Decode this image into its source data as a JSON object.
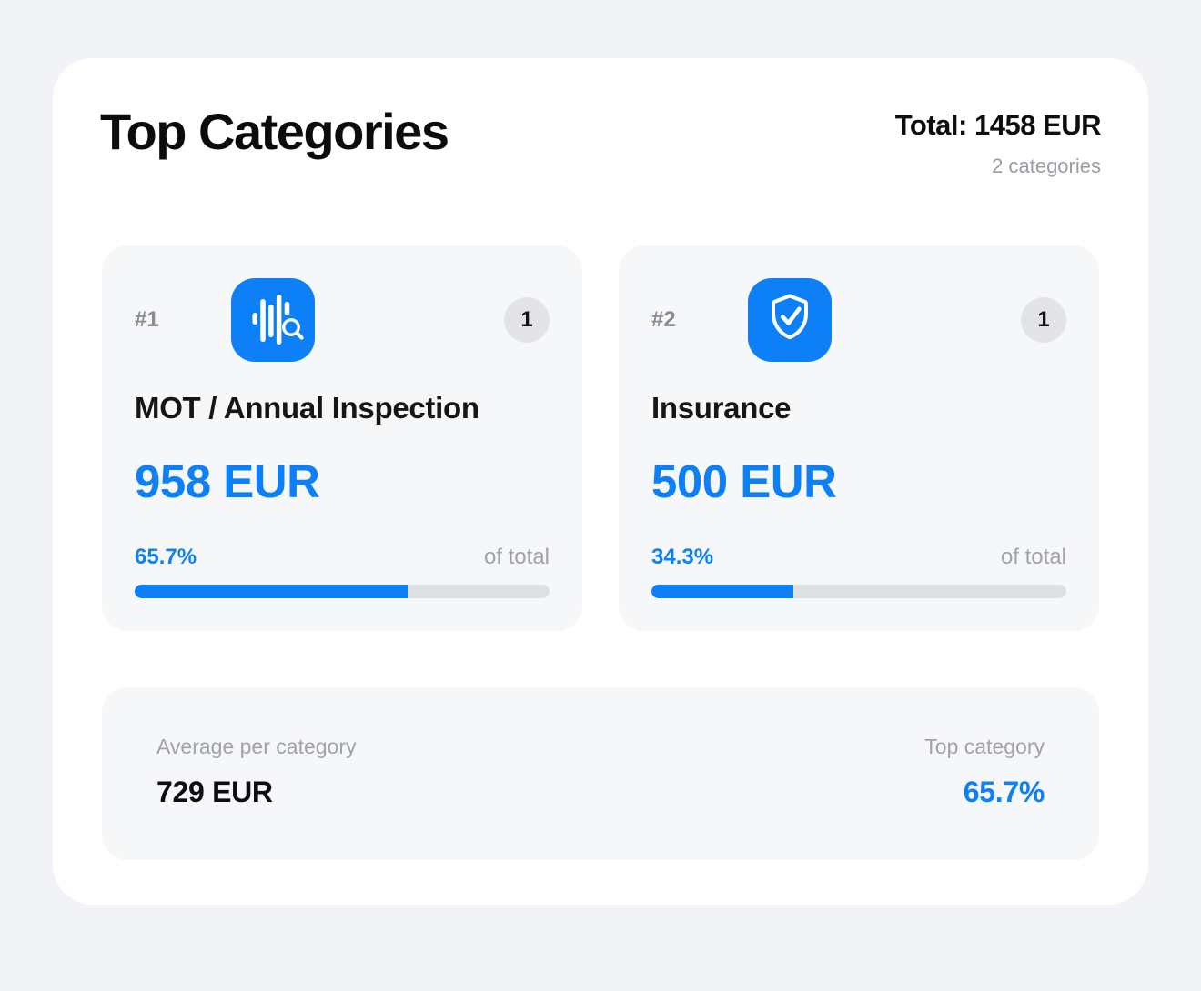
{
  "colors": {
    "accent_blue": "#0d80f8",
    "page_background": "#f1f3f6",
    "panel_background": "#ffffff",
    "card_background": "#f6f7f8",
    "progress_track": "#dedfe1",
    "badge_background": "#e3e4e7",
    "muted_text": "#a2a3a8"
  },
  "header": {
    "title": "Top Categories",
    "total": "Total: 1458 EUR",
    "categories_count": "2 categories"
  },
  "cards": [
    {
      "rank": "#1",
      "icon": "waveform-search-icon",
      "badge_count": "1",
      "name": "MOT / Annual Inspection",
      "amount": "958 EUR",
      "percent": "65.7%",
      "percent_value": 65.7,
      "of_total_label": "of total"
    },
    {
      "rank": "#2",
      "icon": "shield-check-icon",
      "badge_count": "1",
      "name": "Insurance",
      "amount": "500 EUR",
      "percent": "34.3%",
      "percent_value": 34.3,
      "of_total_label": "of total"
    }
  ],
  "summary": {
    "average_label": "Average per category",
    "average_value": "729 EUR",
    "top_label": "Top category",
    "top_value": "65.7%"
  }
}
